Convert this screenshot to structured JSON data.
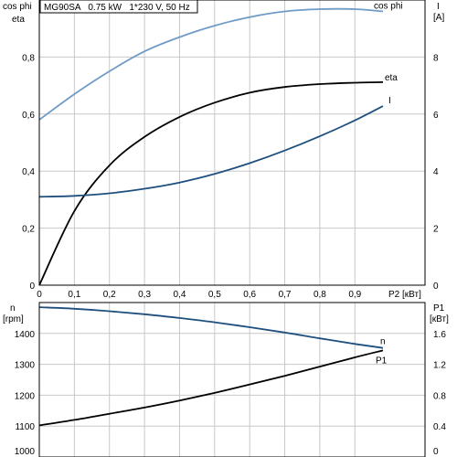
{
  "chart_data": [
    {
      "type": "line",
      "title": "MG90SA   0.75 kW   1*230 V, 50 Hz",
      "xlabel": "P2 [кВт]",
      "xlim": [
        0,
        1.1
      ],
      "xticks": [
        "0",
        "0,1",
        "0,2",
        "0,3",
        "0,4",
        "0,5",
        "0,6",
        "0,7",
        "0,8",
        "0,9"
      ],
      "ylabel_left": [
        "cos phi",
        "eta"
      ],
      "ylim_left": [
        0,
        1
      ],
      "yticks_left": [
        "0",
        "0,2",
        "0,4",
        "0,6",
        "0,8"
      ],
      "ylabel_right": [
        "I",
        "[A]"
      ],
      "ylim_right": [
        0,
        10
      ],
      "yticks_right": [
        "0",
        "2",
        "4",
        "6",
        "8"
      ],
      "grid": true,
      "series": [
        {
          "name": "cos phi",
          "axis": "left",
          "color": "#6f9bc6",
          "x": [
            0,
            0.1,
            0.2,
            0.3,
            0.4,
            0.5,
            0.6,
            0.7,
            0.8,
            0.9,
            0.98
          ],
          "y": [
            0.58,
            0.67,
            0.75,
            0.82,
            0.87,
            0.91,
            0.94,
            0.96,
            0.968,
            0.968,
            0.96
          ]
        },
        {
          "name": "eta",
          "axis": "left",
          "color": "#000000",
          "x": [
            0,
            0.1,
            0.2,
            0.3,
            0.4,
            0.5,
            0.6,
            0.7,
            0.8,
            0.9,
            0.98
          ],
          "y": [
            0,
            0.26,
            0.42,
            0.52,
            0.59,
            0.64,
            0.675,
            0.695,
            0.705,
            0.71,
            0.712
          ]
        },
        {
          "name": "I",
          "axis": "right",
          "color": "#1f4f7f",
          "x": [
            0,
            0.1,
            0.2,
            0.3,
            0.4,
            0.5,
            0.6,
            0.7,
            0.8,
            0.9,
            0.98
          ],
          "y": [
            3.1,
            3.13,
            3.22,
            3.38,
            3.6,
            3.9,
            4.28,
            4.72,
            5.22,
            5.78,
            6.28
          ]
        }
      ]
    },
    {
      "type": "line",
      "xlim": [
        0,
        1.1
      ],
      "ylabel_left": [
        "n",
        "[rpm]"
      ],
      "ylim_left": [
        1000,
        1500
      ],
      "yticks_left": [
        "1000",
        "1100",
        "1200",
        "1300",
        "1400"
      ],
      "ylabel_right": [
        "P1",
        "[кВт]"
      ],
      "ylim_right": [
        0,
        2
      ],
      "yticks_right": [
        "0",
        "0.4",
        "0.8",
        "1.2",
        "1.6"
      ],
      "grid": true,
      "series": [
        {
          "name": "n",
          "axis": "left",
          "color": "#1f4f7f",
          "x": [
            0,
            0.1,
            0.2,
            0.3,
            0.4,
            0.5,
            0.6,
            0.7,
            0.8,
            0.9,
            0.98
          ],
          "y": [
            1485,
            1480,
            1472,
            1462,
            1450,
            1436,
            1420,
            1403,
            1384,
            1366,
            1353
          ]
        },
        {
          "name": "P1",
          "axis": "right",
          "color": "#000000",
          "x": [
            0,
            0.1,
            0.2,
            0.3,
            0.4,
            0.5,
            0.6,
            0.7,
            0.8,
            0.9,
            0.98
          ],
          "y": [
            0.41,
            0.48,
            0.56,
            0.64,
            0.73,
            0.83,
            0.94,
            1.05,
            1.17,
            1.29,
            1.38
          ]
        }
      ]
    }
  ]
}
